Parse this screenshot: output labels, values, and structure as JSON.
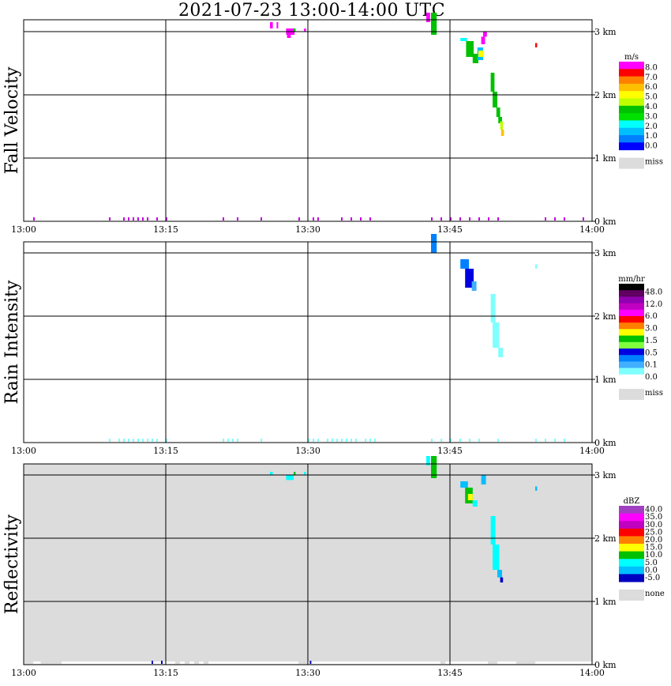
{
  "title": "2021-07-23   13:00-14:00 UTC",
  "x_ticks": [
    "13:00",
    "13:15",
    "13:30",
    "13:45",
    "14:00"
  ],
  "y_ticks": [
    "0 km",
    "1 km",
    "2 km",
    "3 km"
  ],
  "missing_color": "#dcdcdc",
  "chart_data": [
    {
      "type": "heatmap",
      "title": "Fall Velocity",
      "xlim": [
        "13:00",
        "14:00"
      ],
      "ylim": [
        0,
        3.2
      ],
      "background": "#ffffff",
      "colorbar": {
        "unit": "m/s",
        "colors": [
          "#ff00ff",
          "#ff0000",
          "#ff7f00",
          "#ffbf00",
          "#ffff00",
          "#bfff00",
          "#00c000",
          "#00e000",
          "#00ffff",
          "#00bfff",
          "#007fff",
          "#0000ff"
        ],
        "labels": [
          "8.0",
          "7.0",
          "6.0",
          "5.0",
          "4.0",
          "3.0",
          "2.0",
          "1.0",
          "0.0"
        ],
        "missing_label": "miss"
      }
    },
    {
      "type": "heatmap",
      "title": "Rain Intensity",
      "xlim": [
        "13:00",
        "14:00"
      ],
      "ylim": [
        0,
        3.2
      ],
      "background": "#ffffff",
      "colorbar": {
        "unit": "mm/hr",
        "colors": [
          "#000000",
          "#600060",
          "#9000b0",
          "#c000c0",
          "#ff00ff",
          "#ff0000",
          "#ff7f00",
          "#ffff00",
          "#00c000",
          "#80ff40",
          "#0000e0",
          "#0080ff",
          "#40b0ff",
          "#80ffff",
          "#ffffff"
        ],
        "labels": [
          "48.0",
          "12.0",
          "6.0",
          "3.0",
          "1.5",
          "0.5",
          "0.1",
          "0.0"
        ],
        "missing_label": "miss"
      }
    },
    {
      "type": "heatmap",
      "title": "Reflectivity",
      "xlim": [
        "13:00",
        "14:00"
      ],
      "ylim": [
        0,
        3.2
      ],
      "background": "#dcdcdc",
      "colorbar": {
        "unit": "dBZ",
        "colors": [
          "#a040c0",
          "#ff00ff",
          "#c000c0",
          "#ff0000",
          "#ff7f00",
          "#ffff00",
          "#00c000",
          "#00ffff",
          "#00bfff",
          "#0000c0"
        ],
        "labels": [
          "40.0",
          "35.0",
          "30.0",
          "25.0",
          "20.0",
          "15.0",
          "10.0",
          "5.0",
          "0.0",
          "-5.0"
        ],
        "missing_label": "none"
      }
    }
  ]
}
